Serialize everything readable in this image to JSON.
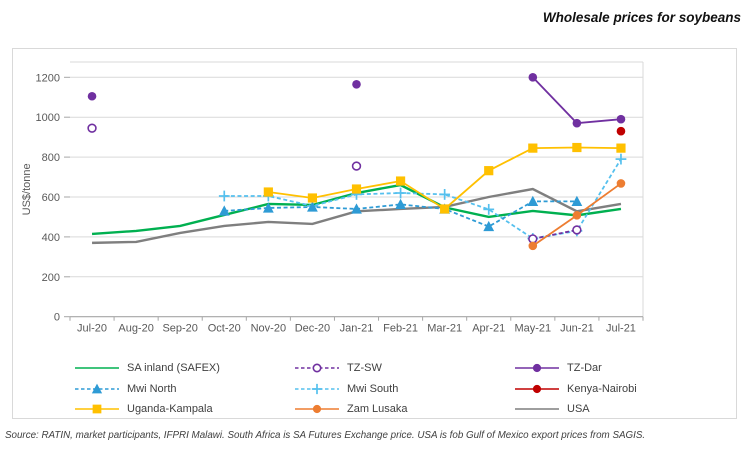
{
  "title": "Wholesale prices for soybeans",
  "source_note": "Source: RATIN, market participants, IFPRI Malawi. South Africa is SA Futures Exchange price. USA is fob Gulf of Mexico export prices from SAGIS.",
  "chart_data": {
    "type": "line",
    "title": "Wholesale prices for soybeans",
    "xlabel": "",
    "ylabel": "US$/tonne",
    "ylim": [
      0,
      1200
    ],
    "ytick_step": 200,
    "grid": true,
    "legend_position": "bottom",
    "categories": [
      "Jul-20",
      "Aug-20",
      "Sep-20",
      "Oct-20",
      "Nov-20",
      "Dec-20",
      "Jan-21",
      "Feb-21",
      "Mar-21",
      "Apr-21",
      "May-21",
      "Jun-21",
      "Jul-21"
    ],
    "series": [
      {
        "name": "USA",
        "color": "#7F7F7F",
        "dash": "solid",
        "marker": "none",
        "points": [
          [
            0,
            370
          ],
          [
            1,
            375
          ],
          [
            2,
            420
          ],
          [
            3,
            455
          ],
          [
            4,
            475
          ],
          [
            5,
            465
          ],
          [
            6,
            528
          ],
          [
            7,
            540
          ],
          [
            8,
            550
          ],
          [
            9,
            600
          ],
          [
            10,
            640
          ],
          [
            11,
            528
          ],
          [
            12,
            565
          ]
        ]
      },
      {
        "name": "SA inland (SAFEX)",
        "color": "#00B050",
        "dash": "solid",
        "marker": "none",
        "points": [
          [
            0,
            415
          ],
          [
            1,
            430
          ],
          [
            2,
            455
          ],
          [
            3,
            510
          ],
          [
            4,
            565
          ],
          [
            5,
            560
          ],
          [
            6,
            620
          ],
          [
            7,
            660
          ],
          [
            8,
            548
          ],
          [
            9,
            500
          ],
          [
            10,
            530
          ],
          [
            11,
            508
          ],
          [
            12,
            540
          ]
        ]
      },
      {
        "name": "Mwi South",
        "color": "#55C0EE",
        "dash": "dashed",
        "marker": "plus",
        "points": [
          [
            3,
            605
          ],
          [
            4,
            605
          ],
          [
            5,
            555
          ],
          [
            6,
            613
          ],
          [
            7,
            620
          ],
          [
            8,
            613
          ],
          [
            9,
            538
          ],
          [
            10,
            392
          ],
          [
            11,
            430
          ],
          [
            12,
            790
          ]
        ]
      },
      {
        "name": "Mwi North",
        "color": "#2E9BD5",
        "dash": "dashed",
        "marker": "triangle",
        "points": [
          [
            3,
            530
          ],
          [
            4,
            545
          ],
          [
            5,
            550
          ],
          [
            6,
            540
          ],
          [
            7,
            563
          ],
          [
            8,
            540
          ],
          [
            9,
            452
          ],
          [
            10,
            578
          ],
          [
            11,
            578
          ]
        ]
      },
      {
        "name": "Uganda-Kampala",
        "color": "#FFC000",
        "dash": "solid",
        "marker": "square",
        "points": [
          [
            4,
            625
          ],
          [
            5,
            595
          ],
          [
            6,
            640
          ],
          [
            7,
            680
          ],
          [
            8,
            540
          ],
          [
            9,
            732
          ],
          [
            10,
            845
          ],
          [
            11,
            848
          ],
          [
            12,
            845
          ]
        ]
      },
      {
        "name": "TZ-SW",
        "color": "#7030A0",
        "dash": "dashed",
        "marker": "circle-open",
        "points": [
          [
            0,
            945
          ],
          [
            6,
            755
          ],
          [
            10,
            390
          ],
          [
            11,
            435
          ]
        ]
      },
      {
        "name": "TZ-Dar",
        "color": "#7030A0",
        "dash": "solid",
        "marker": "circle",
        "points": [
          [
            0,
            1105
          ],
          [
            6,
            1165
          ],
          [
            10,
            1200
          ],
          [
            11,
            970
          ],
          [
            12,
            990
          ]
        ]
      },
      {
        "name": "Zam Lusaka",
        "color": "#ED7D31",
        "dash": "solid",
        "marker": "circle",
        "points": [
          [
            10,
            355
          ],
          [
            11,
            508
          ],
          [
            12,
            668
          ]
        ]
      },
      {
        "name": "Kenya-Nairobi",
        "color": "#C00000",
        "dash": "solid",
        "marker": "circle",
        "points": [
          [
            12,
            930
          ]
        ]
      }
    ],
    "legend_order": [
      [
        "SA inland (SAFEX)",
        "TZ-SW",
        "TZ-Dar"
      ],
      [
        "Mwi North",
        "Mwi South",
        "Kenya-Nairobi"
      ],
      [
        "Uganda-Kampala",
        "Zam Lusaka",
        "USA"
      ]
    ]
  }
}
